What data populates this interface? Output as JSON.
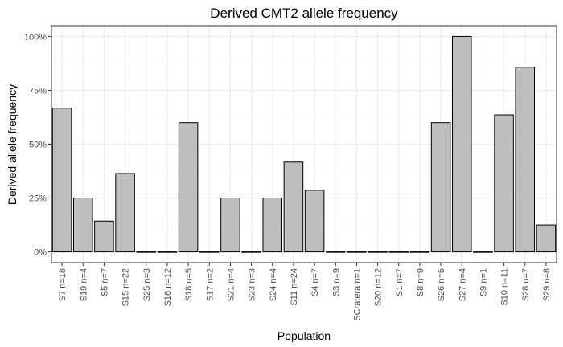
{
  "chart_data": {
    "type": "bar",
    "title": "Derived CMT2 allele frequency",
    "xlabel": "Population",
    "ylabel": "Derived allele frequency",
    "categories": [
      "S7 n=18",
      "S19 n=4",
      "S5 n=7",
      "S15 n=22",
      "S25 n=3",
      "S16 n=12",
      "S18 n=5",
      "S17 n=2",
      "S21 n=4",
      "S23 n=3",
      "S24 n=4",
      "S11 n=24",
      "S4 n=7",
      "S3 n=9",
      "SCratera n=1",
      "S20 n=12",
      "S1 n=7",
      "S8 n=9",
      "S26 n=5",
      "S27 n=4",
      "S9 n=1",
      "S10 n=11",
      "S28 n=7",
      "S29 n=8"
    ],
    "values": [
      0.667,
      0.25,
      0.143,
      0.364,
      0,
      0,
      0.6,
      0,
      0.25,
      0,
      0.25,
      0.417,
      0.286,
      0,
      0,
      0,
      0,
      0,
      0.6,
      1.0,
      0,
      0.636,
      0.857,
      0.125
    ],
    "ylim": [
      -0.05,
      1.05
    ],
    "yticks": [
      0,
      0.25,
      0.5,
      0.75,
      1.0
    ],
    "ytick_labels": [
      "0%",
      "25%",
      "50%",
      "75%",
      "100%"
    ],
    "grid": true,
    "colors": {
      "bar_fill": "#bebebe",
      "bar_stroke": "#000000",
      "panel_border": "#333333",
      "grid_major": "#ebebeb",
      "grid_minor": "#f5f5f5"
    }
  }
}
